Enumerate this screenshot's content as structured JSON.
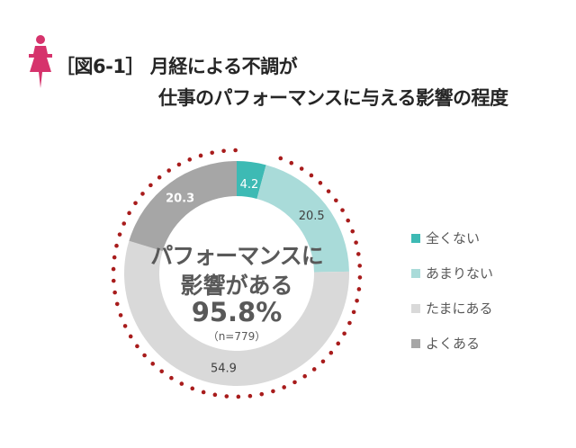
{
  "title": {
    "line1": "［図6-1］ 月経による不調が",
    "line2": "仕事のパフォーマンスに与える影響の程度",
    "icon": "woman-icon",
    "icon_color": "#d6336c"
  },
  "chart_data": {
    "type": "pie",
    "donut": true,
    "categories": [
      "全くない",
      "あまりない",
      "たまにある",
      "よくある"
    ],
    "values": [
      4.2,
      20.5,
      54.9,
      20.3
    ],
    "labels": [
      "4.2",
      "20.5",
      "54.9",
      "20.3"
    ],
    "colors": [
      "#3dbab4",
      "#a9dbd9",
      "#d9d9d9",
      "#a6a6a6"
    ],
    "label_colors": [
      "#ffffff",
      "#404040",
      "#404040",
      "#ffffff"
    ],
    "legend_position": "right",
    "highlight_color": "#a81c1c",
    "center_text": {
      "line1": "パフォーマンスに",
      "line2": "影響がある",
      "value": "95.8%",
      "n": "（n=779）"
    }
  }
}
